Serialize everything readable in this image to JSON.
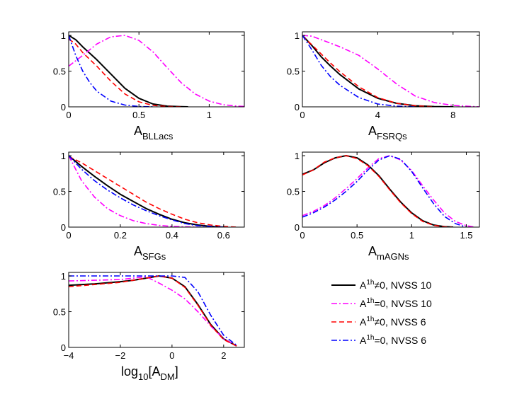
{
  "colors": {
    "black": "#000000",
    "magenta": "#ff00ff",
    "red": "#ff0000",
    "blue": "#0000ff"
  },
  "legend": [
    {
      "prefix": "A",
      "sup": "1h",
      "suffix": "≠0, NVSS 10",
      "color": "#000000",
      "dash": "solid"
    },
    {
      "prefix": "A",
      "sup": "1h",
      "suffix": "=0, NVSS 10",
      "color": "#ff00ff",
      "dash": "dashdot"
    },
    {
      "prefix": "A",
      "sup": "1h",
      "suffix": "≠0, NVSS 6",
      "color": "#ff0000",
      "dash": "dashed"
    },
    {
      "prefix": "A",
      "sup": "1h",
      "suffix": "=0, NVSS 6",
      "color": "#0000ff",
      "dash": "dashdot"
    }
  ],
  "chart_data": [
    {
      "type": "line",
      "xlabel_main": "A",
      "xlabel_sub": "BLLacs",
      "xlim": [
        0,
        1.25
      ],
      "ylim": [
        0,
        1.05
      ],
      "xticks": [
        0,
        0.5,
        1
      ],
      "xtick_labels": [
        "0",
        "0.5",
        "1"
      ],
      "yticks": [
        0,
        0.5,
        1
      ],
      "ytick_labels": [
        "0",
        "0.5",
        "1"
      ],
      "series": [
        {
          "name": "A1h≠0, NVSS 10",
          "color": "#000000",
          "dash": "solid",
          "x": [
            0,
            0.05,
            0.1,
            0.2,
            0.3,
            0.4,
            0.5,
            0.6,
            0.7,
            0.8,
            0.85
          ],
          "y": [
            1,
            0.94,
            0.84,
            0.66,
            0.46,
            0.26,
            0.12,
            0.04,
            0.01,
            0.002,
            0
          ]
        },
        {
          "name": "A1h=0, NVSS 10",
          "color": "#ff00ff",
          "dash": "dashdot",
          "x": [
            0,
            0.1,
            0.2,
            0.3,
            0.4,
            0.5,
            0.6,
            0.7,
            0.8,
            0.9,
            1.0,
            1.1,
            1.2,
            1.25
          ],
          "y": [
            0.57,
            0.72,
            0.88,
            0.98,
            1.0,
            0.93,
            0.77,
            0.55,
            0.34,
            0.18,
            0.08,
            0.03,
            0.01,
            0.005
          ]
        },
        {
          "name": "A1h≠0, NVSS 6",
          "color": "#ff0000",
          "dash": "dashed",
          "x": [
            0,
            0.05,
            0.1,
            0.2,
            0.3,
            0.4,
            0.5,
            0.6,
            0.7,
            0.8
          ],
          "y": [
            0.95,
            0.88,
            0.76,
            0.57,
            0.36,
            0.18,
            0.07,
            0.02,
            0.005,
            0
          ]
        },
        {
          "name": "A1h=0, NVSS 6",
          "color": "#0000ff",
          "dash": "dashdot",
          "x": [
            0,
            0.05,
            0.1,
            0.15,
            0.2,
            0.3,
            0.4,
            0.5,
            0.6
          ],
          "y": [
            1,
            0.72,
            0.5,
            0.34,
            0.22,
            0.08,
            0.025,
            0.005,
            0
          ]
        }
      ]
    },
    {
      "type": "line",
      "xlabel_main": "A",
      "xlabel_sub": "FSRQs",
      "xlim": [
        0,
        9.4
      ],
      "ylim": [
        0,
        1.05
      ],
      "xticks": [
        0,
        4,
        8
      ],
      "xtick_labels": [
        "0",
        "4",
        "8"
      ],
      "yticks": [
        0,
        0.5,
        1
      ],
      "ytick_labels": [
        "0",
        "0.5",
        "1"
      ],
      "series": [
        {
          "name": "A1h≠0, NVSS 10",
          "color": "#000000",
          "dash": "solid",
          "x": [
            0,
            0.5,
            1,
            1.5,
            2,
            3,
            4,
            5,
            6,
            7,
            8
          ],
          "y": [
            1,
            0.86,
            0.7,
            0.57,
            0.45,
            0.25,
            0.12,
            0.05,
            0.015,
            0.004,
            0
          ]
        },
        {
          "name": "A1h=0, NVSS 10",
          "color": "#ff00ff",
          "dash": "dashdot",
          "x": [
            0,
            0.5,
            1,
            2,
            3,
            4,
            5,
            6,
            7,
            8,
            9,
            9.4
          ],
          "y": [
            1,
            0.99,
            0.94,
            0.84,
            0.72,
            0.53,
            0.32,
            0.15,
            0.06,
            0.02,
            0.005,
            0
          ]
        },
        {
          "name": "A1h≠0, NVSS 6",
          "color": "#ff0000",
          "dash": "dashed",
          "x": [
            0,
            0.5,
            1,
            1.5,
            2,
            3,
            4,
            5,
            6,
            7
          ],
          "y": [
            0.99,
            0.87,
            0.74,
            0.61,
            0.49,
            0.28,
            0.13,
            0.05,
            0.015,
            0
          ]
        },
        {
          "name": "A1h=0, NVSS 6",
          "color": "#0000ff",
          "dash": "dashdot",
          "x": [
            0,
            0.5,
            1,
            1.5,
            2,
            3,
            4,
            5,
            6
          ],
          "y": [
            1,
            0.8,
            0.58,
            0.42,
            0.3,
            0.13,
            0.04,
            0.01,
            0
          ]
        }
      ]
    },
    {
      "type": "line",
      "xlabel_main": "A",
      "xlabel_sub": "SFGs",
      "xlim": [
        0,
        0.68
      ],
      "ylim": [
        0,
        1.05
      ],
      "xticks": [
        0,
        0.2,
        0.4,
        0.6
      ],
      "xtick_labels": [
        "0",
        "0.2",
        "0.4",
        "0.6"
      ],
      "yticks": [
        0,
        0.5,
        1
      ],
      "ytick_labels": [
        "0",
        "0.5",
        "1"
      ],
      "series": [
        {
          "name": "A1h≠0, NVSS 10",
          "color": "#000000",
          "dash": "solid",
          "x": [
            0,
            0.05,
            0.1,
            0.15,
            0.2,
            0.25,
            0.3,
            0.35,
            0.4,
            0.45,
            0.5,
            0.55,
            0.6
          ],
          "y": [
            1,
            0.85,
            0.71,
            0.58,
            0.46,
            0.36,
            0.26,
            0.18,
            0.11,
            0.06,
            0.03,
            0.01,
            0
          ]
        },
        {
          "name": "A1h=0, NVSS 10",
          "color": "#ff00ff",
          "dash": "dashdot",
          "x": [
            0,
            0.05,
            0.1,
            0.15,
            0.2,
            0.25,
            0.3,
            0.35,
            0.4,
            0.45,
            0.5
          ],
          "y": [
            1,
            0.65,
            0.42,
            0.26,
            0.16,
            0.09,
            0.05,
            0.025,
            0.01,
            0.004,
            0
          ]
        },
        {
          "name": "A1h≠0, NVSS 6",
          "color": "#ff0000",
          "dash": "dashed",
          "x": [
            0,
            0.05,
            0.1,
            0.15,
            0.2,
            0.25,
            0.3,
            0.35,
            0.4,
            0.45,
            0.5,
            0.55,
            0.6,
            0.65
          ],
          "y": [
            0.99,
            0.9,
            0.79,
            0.68,
            0.57,
            0.46,
            0.35,
            0.26,
            0.18,
            0.11,
            0.06,
            0.03,
            0.01,
            0
          ]
        },
        {
          "name": "A1h=0, NVSS 6",
          "color": "#0000ff",
          "dash": "dashdot",
          "x": [
            0,
            0.05,
            0.1,
            0.15,
            0.2,
            0.25,
            0.3,
            0.35,
            0.4,
            0.45,
            0.5,
            0.55,
            0.6
          ],
          "y": [
            1,
            0.81,
            0.65,
            0.52,
            0.41,
            0.31,
            0.23,
            0.16,
            0.1,
            0.05,
            0.02,
            0.008,
            0
          ]
        }
      ]
    },
    {
      "type": "line",
      "xlabel_main": "A",
      "xlabel_sub": "mAGNs",
      "xlim": [
        0,
        1.62
      ],
      "ylim": [
        0,
        1.05
      ],
      "xticks": [
        0,
        0.5,
        1,
        1.5
      ],
      "xtick_labels": [
        "0",
        "0.5",
        "1",
        "1.5"
      ],
      "yticks": [
        0,
        0.5,
        1
      ],
      "ytick_labels": [
        "0",
        "0.5",
        "1"
      ],
      "series": [
        {
          "name": "A1h≠0, NVSS 10",
          "color": "#000000",
          "dash": "solid",
          "x": [
            0,
            0.1,
            0.2,
            0.3,
            0.4,
            0.5,
            0.6,
            0.7,
            0.8,
            0.9,
            1.0,
            1.1,
            1.2,
            1.3,
            1.38
          ],
          "y": [
            0.74,
            0.8,
            0.9,
            0.97,
            1.0,
            0.97,
            0.87,
            0.72,
            0.53,
            0.35,
            0.2,
            0.09,
            0.03,
            0.006,
            0
          ]
        },
        {
          "name": "A1h=0, NVSS 10",
          "color": "#ff00ff",
          "dash": "dashdot",
          "x": [
            0,
            0.1,
            0.2,
            0.3,
            0.4,
            0.5,
            0.6,
            0.7,
            0.8,
            0.9,
            1.0,
            1.1,
            1.2,
            1.3,
            1.4,
            1.5,
            1.58
          ],
          "y": [
            0.16,
            0.22,
            0.3,
            0.41,
            0.54,
            0.68,
            0.83,
            0.96,
            1.0,
            0.94,
            0.79,
            0.58,
            0.38,
            0.2,
            0.08,
            0.02,
            0
          ]
        },
        {
          "name": "A1h≠0, NVSS 6",
          "color": "#ff0000",
          "dash": "dashed",
          "x": [
            0,
            0.1,
            0.2,
            0.3,
            0.4,
            0.5,
            0.6,
            0.7,
            0.8,
            0.9,
            1.0,
            1.1,
            1.2,
            1.3,
            1.37
          ],
          "y": [
            0.73,
            0.8,
            0.91,
            0.97,
            1.0,
            0.96,
            0.86,
            0.71,
            0.52,
            0.34,
            0.19,
            0.08,
            0.025,
            0.005,
            0
          ]
        },
        {
          "name": "A1h=0, NVSS 6",
          "color": "#0000ff",
          "dash": "dashdot",
          "x": [
            0,
            0.1,
            0.2,
            0.3,
            0.4,
            0.5,
            0.6,
            0.7,
            0.8,
            0.9,
            1.0,
            1.1,
            1.2,
            1.3,
            1.4,
            1.5
          ],
          "y": [
            0.14,
            0.2,
            0.28,
            0.38,
            0.5,
            0.64,
            0.8,
            0.94,
            1.0,
            0.95,
            0.78,
            0.55,
            0.33,
            0.15,
            0.05,
            0
          ]
        }
      ]
    },
    {
      "type": "line",
      "xlabel_main": "log",
      "xlabel_sub": "10",
      "xlabel_rest": "[A",
      "xlabel_sub2": "DM",
      "xlabel_end": "]",
      "xlim": [
        -4,
        2.8
      ],
      "ylim": [
        0,
        1.05
      ],
      "xticks": [
        -4,
        -2,
        0,
        2
      ],
      "xtick_labels": [
        "−4",
        "−2",
        "0",
        "2"
      ],
      "yticks": [
        0,
        0.5,
        1
      ],
      "ytick_labels": [
        "0",
        "0.5",
        "1"
      ],
      "series": [
        {
          "name": "A1h≠0, NVSS 10",
          "color": "#000000",
          "dash": "solid",
          "x": [
            -4,
            -3,
            -2,
            -1.5,
            -1,
            -0.5,
            0,
            0.5,
            1,
            1.5,
            2,
            2.5
          ],
          "y": [
            0.87,
            0.89,
            0.92,
            0.94,
            0.97,
            1.0,
            0.97,
            0.85,
            0.6,
            0.32,
            0.12,
            0.02
          ]
        },
        {
          "name": "A1h=0, NVSS 10",
          "color": "#ff00ff",
          "dash": "dashdot",
          "x": [
            -4,
            -3,
            -2,
            -1.5,
            -1,
            -0.5,
            0,
            0.5,
            1,
            1.5,
            2,
            2.5
          ],
          "y": [
            0.93,
            0.94,
            0.95,
            0.97,
            0.99,
            0.9,
            0.8,
            0.68,
            0.5,
            0.3,
            0.12,
            0.02
          ]
        },
        {
          "name": "A1h≠0, NVSS 6",
          "color": "#ff0000",
          "dash": "dashed",
          "x": [
            -4,
            -3,
            -2,
            -1.5,
            -1,
            -0.5,
            0,
            0.5,
            1,
            1.5,
            2,
            2.5
          ],
          "y": [
            0.85,
            0.88,
            0.91,
            0.94,
            0.97,
            1.0,
            0.97,
            0.84,
            0.59,
            0.31,
            0.11,
            0.02
          ]
        },
        {
          "name": "A1h=0, NVSS 6",
          "color": "#0000ff",
          "dash": "dashdot",
          "x": [
            -4,
            -3,
            -2,
            -1.5,
            -1,
            -0.5,
            0,
            0.5,
            1,
            1.5,
            2,
            2.5
          ],
          "y": [
            1.0,
            1.0,
            1.0,
            1.0,
            1.0,
            1.0,
            1.0,
            0.98,
            0.78,
            0.45,
            0.17,
            0.03
          ]
        }
      ]
    }
  ]
}
